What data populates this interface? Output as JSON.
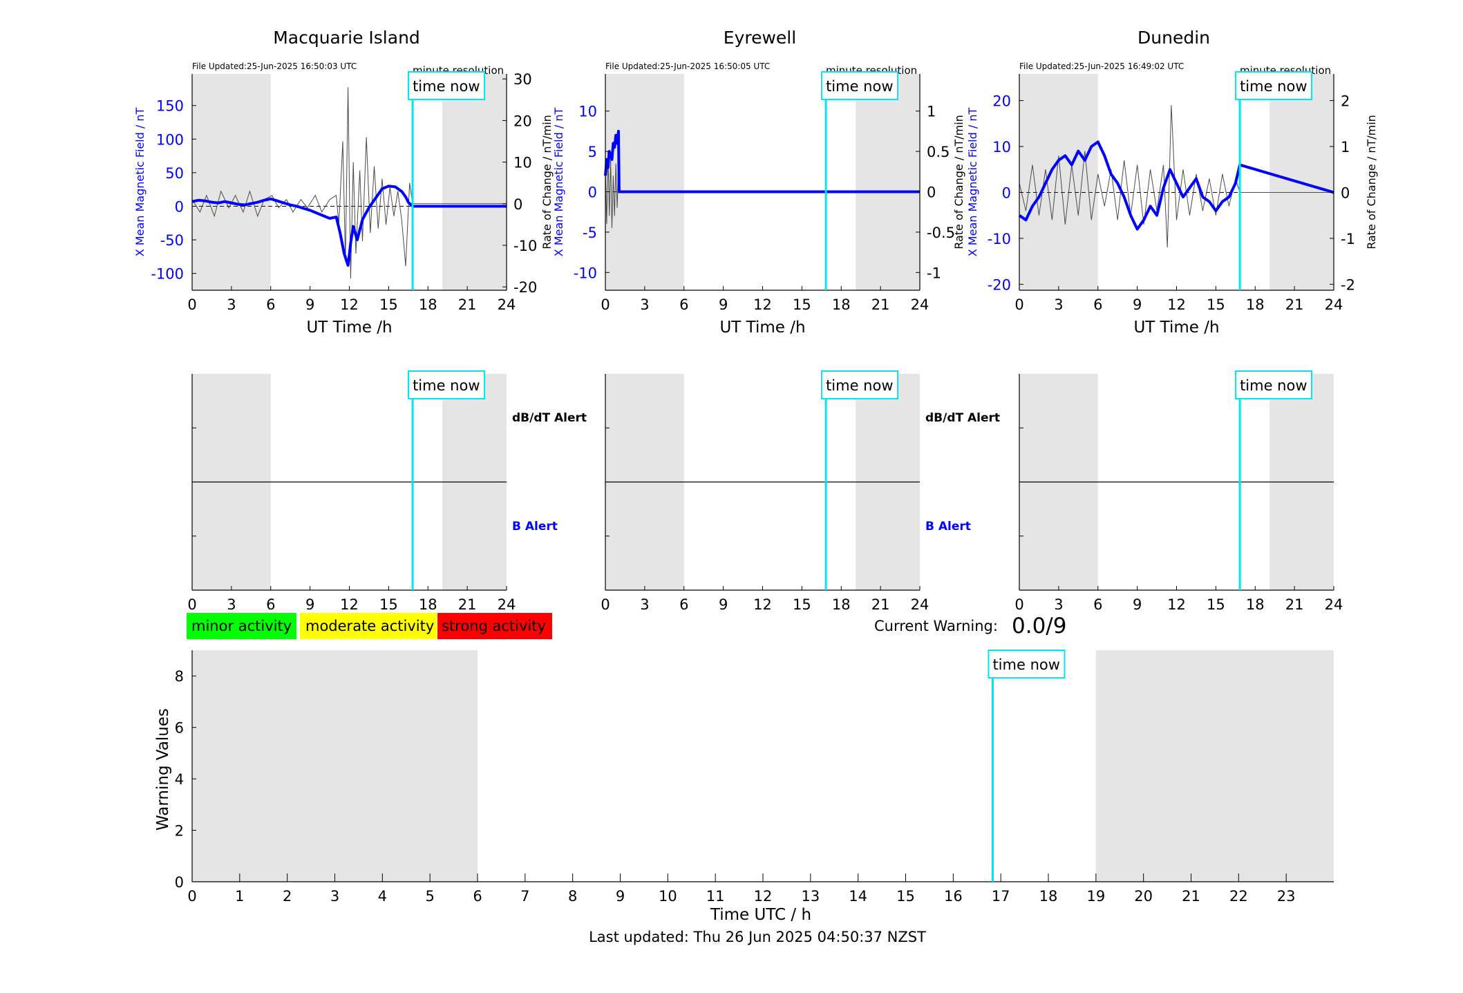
{
  "colors": {
    "b_field": "#0000ff",
    "rate_trace": "#4a4a4a",
    "time_now": "#00e5ee",
    "night_shade": "#e5e5e5",
    "minor": "#00ff00",
    "moderate": "#ffff00",
    "strong": "#ff0000"
  },
  "labels": {
    "ut_xlabel": "UT Time /h",
    "left_ylabel": "X Mean Magnetic Field / nT",
    "right_ylabel": "Rate of Change / nT/min",
    "minute_resolution": "minute resolution",
    "time_now": "time now",
    "dbdt_alert": "dB/dT Alert",
    "b_alert": "B Alert",
    "current_warning_label": "Current Warning:",
    "current_warning_value": "0.0/9",
    "warning_ylabel": "Warning Values",
    "warning_xlabel": "Time UTC / h",
    "last_updated": "Last updated: Thu 26 Jun 2025 04:50:37 NZST"
  },
  "legend": [
    {
      "label": "minor activity",
      "color": "#00ff00"
    },
    {
      "label": "moderate activity",
      "color": "#ffff00"
    },
    {
      "label": "strong activity",
      "color": "#ff0000"
    }
  ],
  "chart_data": [
    {
      "type": "line",
      "title": "Macquarie Island",
      "file_updated": "File Updated:25-Jun-2025 16:50:03 UTC",
      "xlabel": "UT Time /h",
      "ylabel": "X Mean Magnetic Field / nT",
      "y2label": "Rate of Change / nT/min",
      "xlim": [
        0,
        24
      ],
      "xticks": [
        0,
        3,
        6,
        9,
        12,
        15,
        18,
        21,
        24
      ],
      "ylim": [
        -125,
        197
      ],
      "yticks": [
        -100,
        -50,
        0,
        50,
        100,
        150
      ],
      "y2lim": [
        -20.8,
        31.2
      ],
      "y2ticks": [
        -20,
        -10,
        0,
        10,
        20,
        30
      ],
      "night_shading": [
        [
          0,
          6
        ],
        [
          19.1,
          24
        ]
      ],
      "time_now": 16.83,
      "series": [
        {
          "role": "b_field",
          "x": [
            0,
            0.5,
            1,
            1.5,
            2,
            2.5,
            3,
            3.5,
            4,
            4.5,
            5,
            5.5,
            6,
            6.5,
            7,
            7.5,
            8,
            8.5,
            9,
            9.5,
            10,
            10.5,
            11,
            11.3,
            11.6,
            11.9,
            12.1,
            12.3,
            12.6,
            13,
            13.5,
            14,
            14.5,
            15,
            15.5,
            16,
            16.3,
            16.5,
            16.83,
            24
          ],
          "y": [
            7,
            9,
            8,
            6,
            5,
            7,
            5,
            3,
            2,
            4,
            6,
            9,
            11,
            8,
            5,
            2,
            0,
            -3,
            -6,
            -10,
            -14,
            -18,
            -16,
            -40,
            -70,
            -88,
            -55,
            -30,
            -50,
            -20,
            -2,
            12,
            26,
            30,
            29,
            22,
            14,
            6,
            0,
            0
          ]
        },
        {
          "role": "rate_of_change",
          "x": [
            0,
            0.6,
            1.1,
            1.7,
            2.2,
            2.8,
            3.3,
            3.9,
            4.4,
            5,
            5.5,
            6.1,
            6.6,
            7.2,
            7.7,
            8.3,
            8.8,
            9.4,
            9.9,
            10.5,
            11,
            11.2,
            11.5,
            11.7,
            11.9,
            12.1,
            12.3,
            12.5,
            12.8,
            13,
            13.3,
            13.6,
            13.9,
            14.2,
            14.5,
            14.8,
            15.1,
            15.4,
            15.7,
            16,
            16.3,
            16.6,
            16.83,
            24
          ],
          "y": [
            1,
            -2,
            2,
            -3,
            3,
            -1,
            2,
            -2,
            3,
            -3,
            1,
            2,
            -1,
            1,
            -2,
            1,
            -1,
            2,
            -2,
            1,
            2,
            -5,
            15,
            -14,
            28,
            -18,
            10,
            -12,
            8,
            -9,
            16,
            -7,
            9,
            -6,
            6,
            -5,
            4,
            -3,
            3,
            -4,
            -15,
            5,
            0,
            0
          ]
        }
      ]
    },
    {
      "type": "line",
      "title": "Eyrewell",
      "file_updated": "File Updated:25-Jun-2025 16:50:05 UTC",
      "xlabel": "UT Time /h",
      "ylabel": "X Mean Magnetic Field / nT",
      "y2label": "Rate of Change / nT/min",
      "xlim": [
        0,
        24
      ],
      "xticks": [
        0,
        3,
        6,
        9,
        12,
        15,
        18,
        21,
        24
      ],
      "ylim": [
        -12.2,
        14.6
      ],
      "yticks": [
        -10,
        -5,
        0,
        5,
        10
      ],
      "y2lim": [
        -1.22,
        1.46
      ],
      "y2ticks": [
        -1,
        -0.5,
        0,
        0.5,
        1
      ],
      "night_shading": [
        [
          0,
          6
        ],
        [
          19.1,
          24
        ]
      ],
      "time_now": 16.83,
      "series": [
        {
          "role": "b_field",
          "x": [
            0,
            0.1,
            0.2,
            0.3,
            0.4,
            0.5,
            0.6,
            0.7,
            0.8,
            0.9,
            1,
            1.05,
            1.1,
            24
          ],
          "y": [
            2,
            4,
            3,
            5,
            4.5,
            4,
            6,
            5.5,
            7,
            6,
            7.5,
            0,
            0,
            0
          ]
        },
        {
          "role": "rate_of_change",
          "x": [
            0,
            0.1,
            0.2,
            0.3,
            0.4,
            0.5,
            0.6,
            0.7,
            0.8,
            0.9,
            1,
            1.1,
            24
          ],
          "y": [
            0.3,
            -0.4,
            0.5,
            -0.3,
            0.4,
            -0.45,
            0.2,
            -0.3,
            0.35,
            -0.2,
            0.3,
            0,
            0
          ]
        }
      ]
    },
    {
      "type": "line",
      "title": "Dunedin",
      "file_updated": "File Updated:25-Jun-2025 16:49:02 UTC",
      "xlabel": "UT Time /h",
      "ylabel": "X Mean Magnetic Field / nT",
      "y2label": "Rate of Change / nT/min",
      "xlim": [
        0,
        24
      ],
      "xticks": [
        0,
        3,
        6,
        9,
        12,
        15,
        18,
        21,
        24
      ],
      "ylim": [
        -21.3,
        25.8
      ],
      "yticks": [
        -20,
        -10,
        0,
        10,
        20
      ],
      "y2lim": [
        -2.13,
        2.58
      ],
      "y2ticks": [
        -2,
        -1,
        0,
        1,
        2
      ],
      "night_shading": [
        [
          0,
          6
        ],
        [
          19.1,
          24
        ]
      ],
      "time_now": 16.83,
      "series": [
        {
          "role": "b_field",
          "x": [
            0,
            0.5,
            1,
            1.5,
            2,
            2.5,
            3,
            3.5,
            4,
            4.5,
            5,
            5.5,
            6,
            6.5,
            7,
            7.5,
            8,
            8.5,
            9,
            9.5,
            10,
            10.5,
            11,
            11.5,
            12,
            12.5,
            13,
            13.5,
            14,
            14.5,
            15,
            15.5,
            16,
            16.5,
            16.83,
            24
          ],
          "y": [
            -5,
            -6,
            -3,
            -1,
            2,
            5,
            7,
            8,
            6,
            9,
            7,
            10,
            11,
            8,
            4,
            2,
            -1,
            -5,
            -8,
            -6,
            -3,
            -5,
            1,
            5,
            2,
            -1,
            1,
            3,
            -1,
            -2,
            -4,
            -2,
            -1,
            2,
            6,
            0
          ]
        },
        {
          "role": "rate_of_change",
          "x": [
            0,
            0.5,
            1,
            1.5,
            2,
            2.5,
            3,
            3.5,
            4,
            4.5,
            5,
            5.5,
            6,
            6.5,
            7,
            7.5,
            8,
            8.5,
            9,
            9.5,
            10,
            10.5,
            11,
            11.3,
            11.6,
            12,
            12.5,
            13,
            13.5,
            14,
            14.5,
            15,
            15.5,
            16,
            16.5,
            16.83,
            24
          ],
          "y": [
            0.2,
            -0.4,
            0.6,
            -0.5,
            0.5,
            -0.6,
            0.8,
            -0.7,
            0.6,
            -0.5,
            0.9,
            -0.6,
            0.4,
            -0.3,
            0.5,
            -0.6,
            0.7,
            -0.5,
            0.6,
            -0.7,
            0.5,
            -0.4,
            0.6,
            -1.2,
            1.9,
            -0.6,
            0.5,
            -0.5,
            0.4,
            -0.4,
            0.3,
            -0.5,
            0.4,
            -0.3,
            0.3,
            0,
            0
          ]
        }
      ]
    },
    {
      "type": "line",
      "title": "",
      "xlim": [
        0,
        24
      ],
      "xticks": [
        0,
        3,
        6,
        9,
        12,
        15,
        18,
        21,
        24
      ],
      "ylim": [
        0,
        1
      ],
      "night_shading": [
        [
          0,
          6
        ],
        [
          19.1,
          24
        ]
      ],
      "time_now": 16.83,
      "alert_labels": [
        "dB/dT Alert",
        "B Alert"
      ],
      "series": []
    },
    {
      "type": "line",
      "title": "",
      "xlim": [
        0,
        24
      ],
      "xticks": [
        0,
        3,
        6,
        9,
        12,
        15,
        18,
        21,
        24
      ],
      "ylim": [
        0,
        1
      ],
      "night_shading": [
        [
          0,
          6
        ],
        [
          19.1,
          24
        ]
      ],
      "time_now": 16.83,
      "alert_labels": [
        "dB/dT Alert",
        "B Alert"
      ],
      "series": []
    },
    {
      "type": "line",
      "title": "",
      "xlim": [
        0,
        24
      ],
      "xticks": [
        0,
        3,
        6,
        9,
        12,
        15,
        18,
        21,
        24
      ],
      "ylim": [
        0,
        1
      ],
      "night_shading": [
        [
          0,
          6
        ],
        [
          19.1,
          24
        ]
      ],
      "time_now": 16.83,
      "series": []
    },
    {
      "type": "line",
      "title": "",
      "xlabel": "Time UTC / h",
      "ylabel": "Warning Values",
      "xlim": [
        0,
        24
      ],
      "xticks": [
        0,
        1,
        2,
        3,
        4,
        5,
        6,
        7,
        8,
        9,
        10,
        11,
        12,
        13,
        14,
        15,
        16,
        17,
        18,
        19,
        20,
        21,
        22,
        23
      ],
      "ylim": [
        0,
        9
      ],
      "yticks": [
        0,
        2,
        4,
        6,
        8
      ],
      "night_shading": [
        [
          0,
          6
        ],
        [
          19,
          24
        ]
      ],
      "time_now": 16.83,
      "current_warning": 0.0,
      "series": []
    }
  ]
}
